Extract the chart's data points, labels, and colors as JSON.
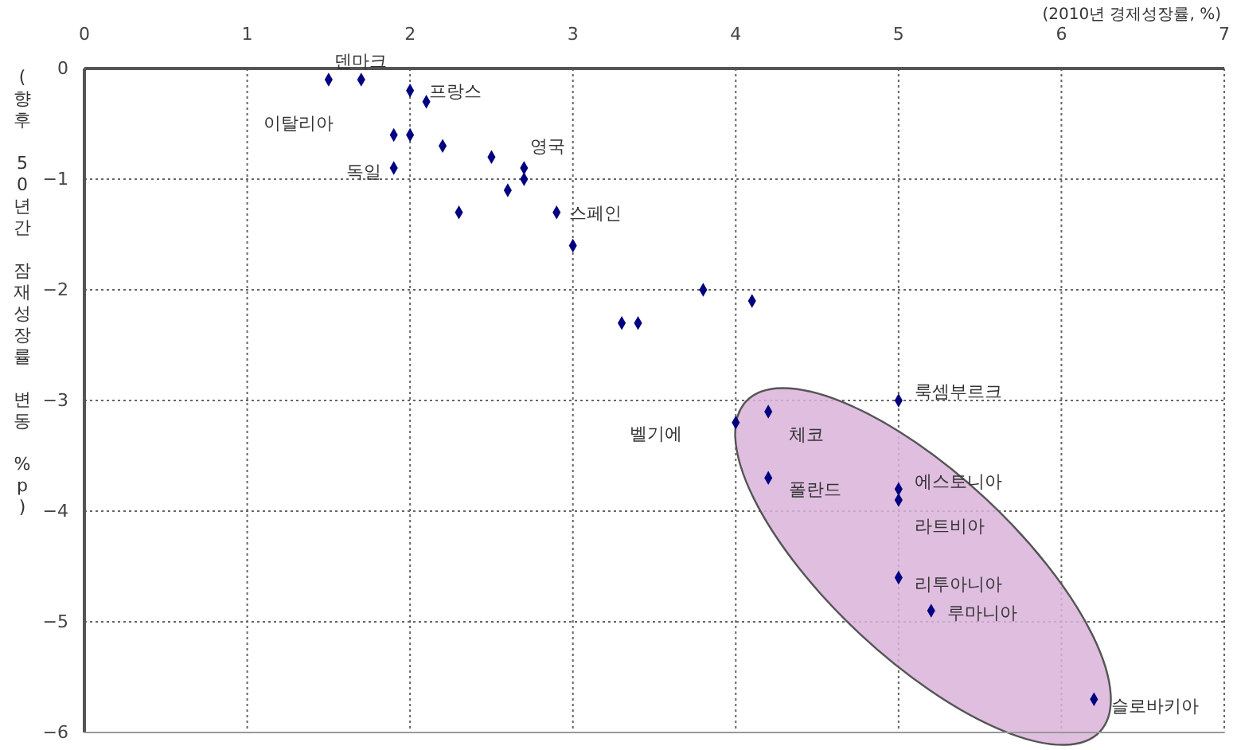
{
  "chart_data": {
    "type": "scatter",
    "xlabel": "(2010년 경제성장률, %)",
    "ylabel": "(향후 50년간 잠재성장률 변동 %p)",
    "xlim": [
      0,
      7
    ],
    "xticks": [
      0,
      1,
      2,
      3,
      4,
      5,
      6,
      7
    ],
    "ylim": [
      -6,
      0
    ],
    "yticks": [
      0,
      -1,
      -2,
      -3,
      -4,
      -5,
      -6
    ],
    "grid": true,
    "marker": "diamond",
    "series": [
      {
        "color": "#000080",
        "x": [
          1.5,
          1.7,
          2.0,
          2.1,
          1.9,
          2.0,
          2.2,
          2.5,
          2.7,
          2.7,
          2.6,
          1.9,
          2.3,
          2.9,
          3.0,
          3.8,
          4.1,
          3.3,
          3.4,
          5.0,
          4.2,
          4.0,
          4.2,
          5.0,
          5.0,
          5.0,
          5.2,
          6.2
        ],
        "values": [
          -0.1,
          -0.1,
          -0.2,
          -0.3,
          -0.6,
          -0.6,
          -0.7,
          -0.8,
          -0.9,
          -1.0,
          -1.1,
          -0.9,
          -1.3,
          -1.3,
          -1.6,
          -2.0,
          -2.1,
          -2.3,
          -2.3,
          -3.0,
          -3.1,
          -3.2,
          -3.7,
          -3.8,
          -3.9,
          -4.6,
          -4.9,
          -5.7
        ]
      }
    ],
    "annotations": [
      {
        "text": "덴마크",
        "x": 1.7,
        "y": -0.1
      },
      {
        "text": "프랑스",
        "x": 2.0,
        "y": -0.2
      },
      "이탈리아",
      {
        "text": "독일",
        "x": 1.9,
        "y": -0.9
      },
      {
        "text": "영국",
        "x": 2.7,
        "y": -0.9
      },
      {
        "text": "스페인",
        "x": 2.9,
        "y": -1.3
      },
      {
        "text": "룩셈부르크",
        "x": 5.0,
        "y": -3.0
      },
      {
        "text": "체코",
        "x": 4.2,
        "y": -3.1
      },
      "벨기에",
      {
        "text": "폴란드",
        "x": 4.2,
        "y": -3.7
      },
      {
        "text": "에스토니아",
        "x": 5.0,
        "y": -3.8
      },
      {
        "text": "라트비아",
        "x": 5.0,
        "y": -3.9
      },
      {
        "text": "리투아니아",
        "x": 5.0,
        "y": -4.6
      },
      {
        "text": "루마니아",
        "x": 5.2,
        "y": -4.9
      },
      {
        "text": "슬로바키아",
        "x": 6.2,
        "y": -5.7
      }
    ]
  }
}
